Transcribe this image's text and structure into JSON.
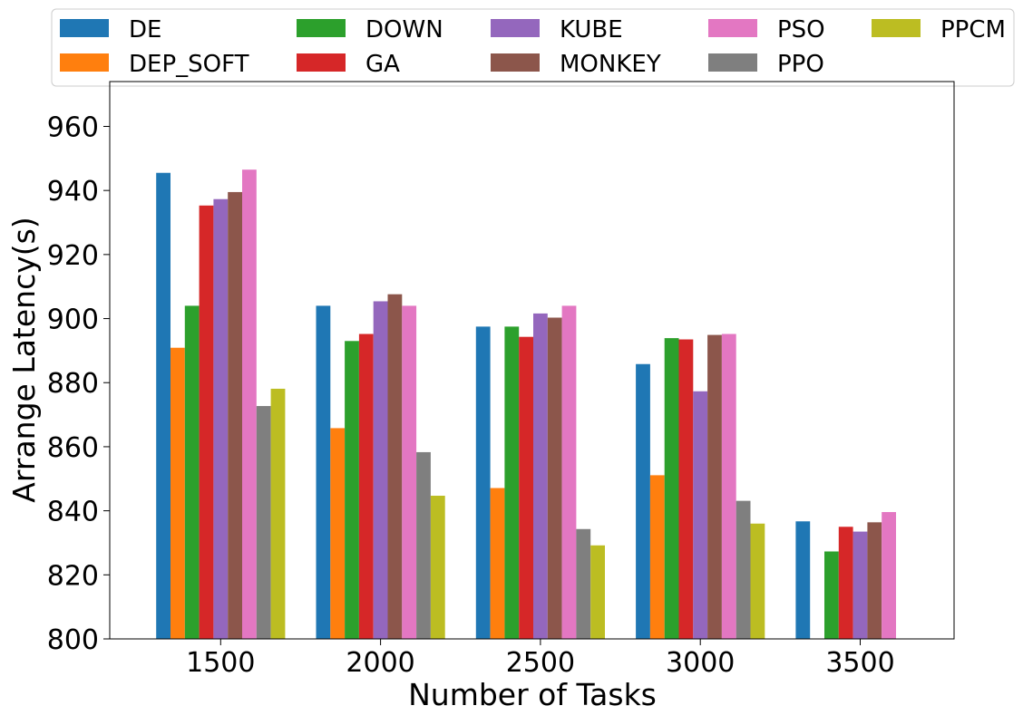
{
  "chart_data": {
    "type": "bar",
    "title": "",
    "xlabel": "Number of Tasks",
    "ylabel": "Arrange Latency(s)",
    "ylim": [
      800,
      974
    ],
    "yticks": [
      800,
      820,
      840,
      860,
      880,
      900,
      920,
      940,
      960
    ],
    "categories": [
      "1500",
      "2000",
      "2500",
      "3000",
      "3500"
    ],
    "legend_position": "top, above plot, 5 columns",
    "series": [
      {
        "name": "DE",
        "color": "#1f77b4",
        "values": [
          945.5,
          904.0,
          897.5,
          885.8,
          836.7
        ]
      },
      {
        "name": "DEP_SOFT",
        "color": "#ff7f0e",
        "values": [
          890.9,
          865.8,
          847.1,
          851.1,
          null
        ]
      },
      {
        "name": "DOWN",
        "color": "#2ca02c",
        "values": [
          904.0,
          893.0,
          897.5,
          893.9,
          827.3
        ]
      },
      {
        "name": "GA",
        "color": "#d62728",
        "values": [
          935.3,
          895.2,
          894.3,
          893.5,
          835.0
        ]
      },
      {
        "name": "KUBE",
        "color": "#9467bd",
        "values": [
          937.3,
          905.4,
          901.6,
          877.3,
          833.5
        ]
      },
      {
        "name": "MONKEY",
        "color": "#8c564b",
        "values": [
          939.5,
          907.6,
          900.3,
          894.9,
          836.4
        ]
      },
      {
        "name": "PSO",
        "color": "#e377c2",
        "values": [
          946.5,
          904.0,
          904.0,
          895.2,
          839.6
        ]
      },
      {
        "name": "PPO",
        "color": "#7f7f7f",
        "values": [
          872.7,
          858.3,
          834.3,
          843.1,
          null
        ]
      },
      {
        "name": "PPCM",
        "color": "#bcbd22",
        "values": [
          878.1,
          844.7,
          829.2,
          836.0,
          null
        ]
      }
    ]
  }
}
